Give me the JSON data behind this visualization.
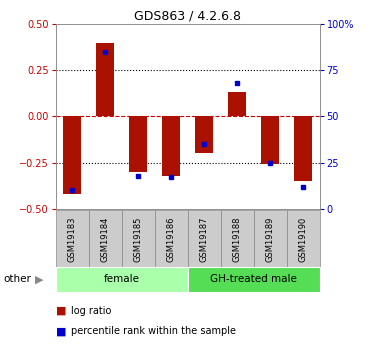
{
  "title": "GDS863 / 4.2.6.8",
  "samples": [
    "GSM19183",
    "GSM19184",
    "GSM19185",
    "GSM19186",
    "GSM19187",
    "GSM19188",
    "GSM19189",
    "GSM19190"
  ],
  "log_ratio": [
    -0.42,
    0.4,
    -0.3,
    -0.32,
    -0.2,
    0.13,
    -0.26,
    -0.35
  ],
  "percentile_rank": [
    10,
    85,
    18,
    17,
    35,
    68,
    25,
    12
  ],
  "groups": [
    {
      "label": "female",
      "start": 0,
      "end": 3,
      "color": "#AAFFAA"
    },
    {
      "label": "GH-treated male",
      "start": 4,
      "end": 7,
      "color": "#55DD55"
    }
  ],
  "bar_color": "#AA1100",
  "dot_color": "#0000CC",
  "bar_width": 0.55,
  "ylim": [
    -0.5,
    0.5
  ],
  "yticks_left": [
    -0.5,
    -0.25,
    0,
    0.25,
    0.5
  ],
  "yticks_right": [
    0,
    25,
    50,
    75,
    100
  ],
  "hline_dashed_color": "#CC0000",
  "hline_dotted_color": "#000000",
  "bg_color": "#FFFFFF",
  "plot_bg_color": "#FFFFFF",
  "label_log_ratio": "log ratio",
  "label_percentile": "percentile rank within the sample",
  "other_text": "other",
  "left_axis_color": "#CC0000",
  "right_axis_color": "#0000CC"
}
